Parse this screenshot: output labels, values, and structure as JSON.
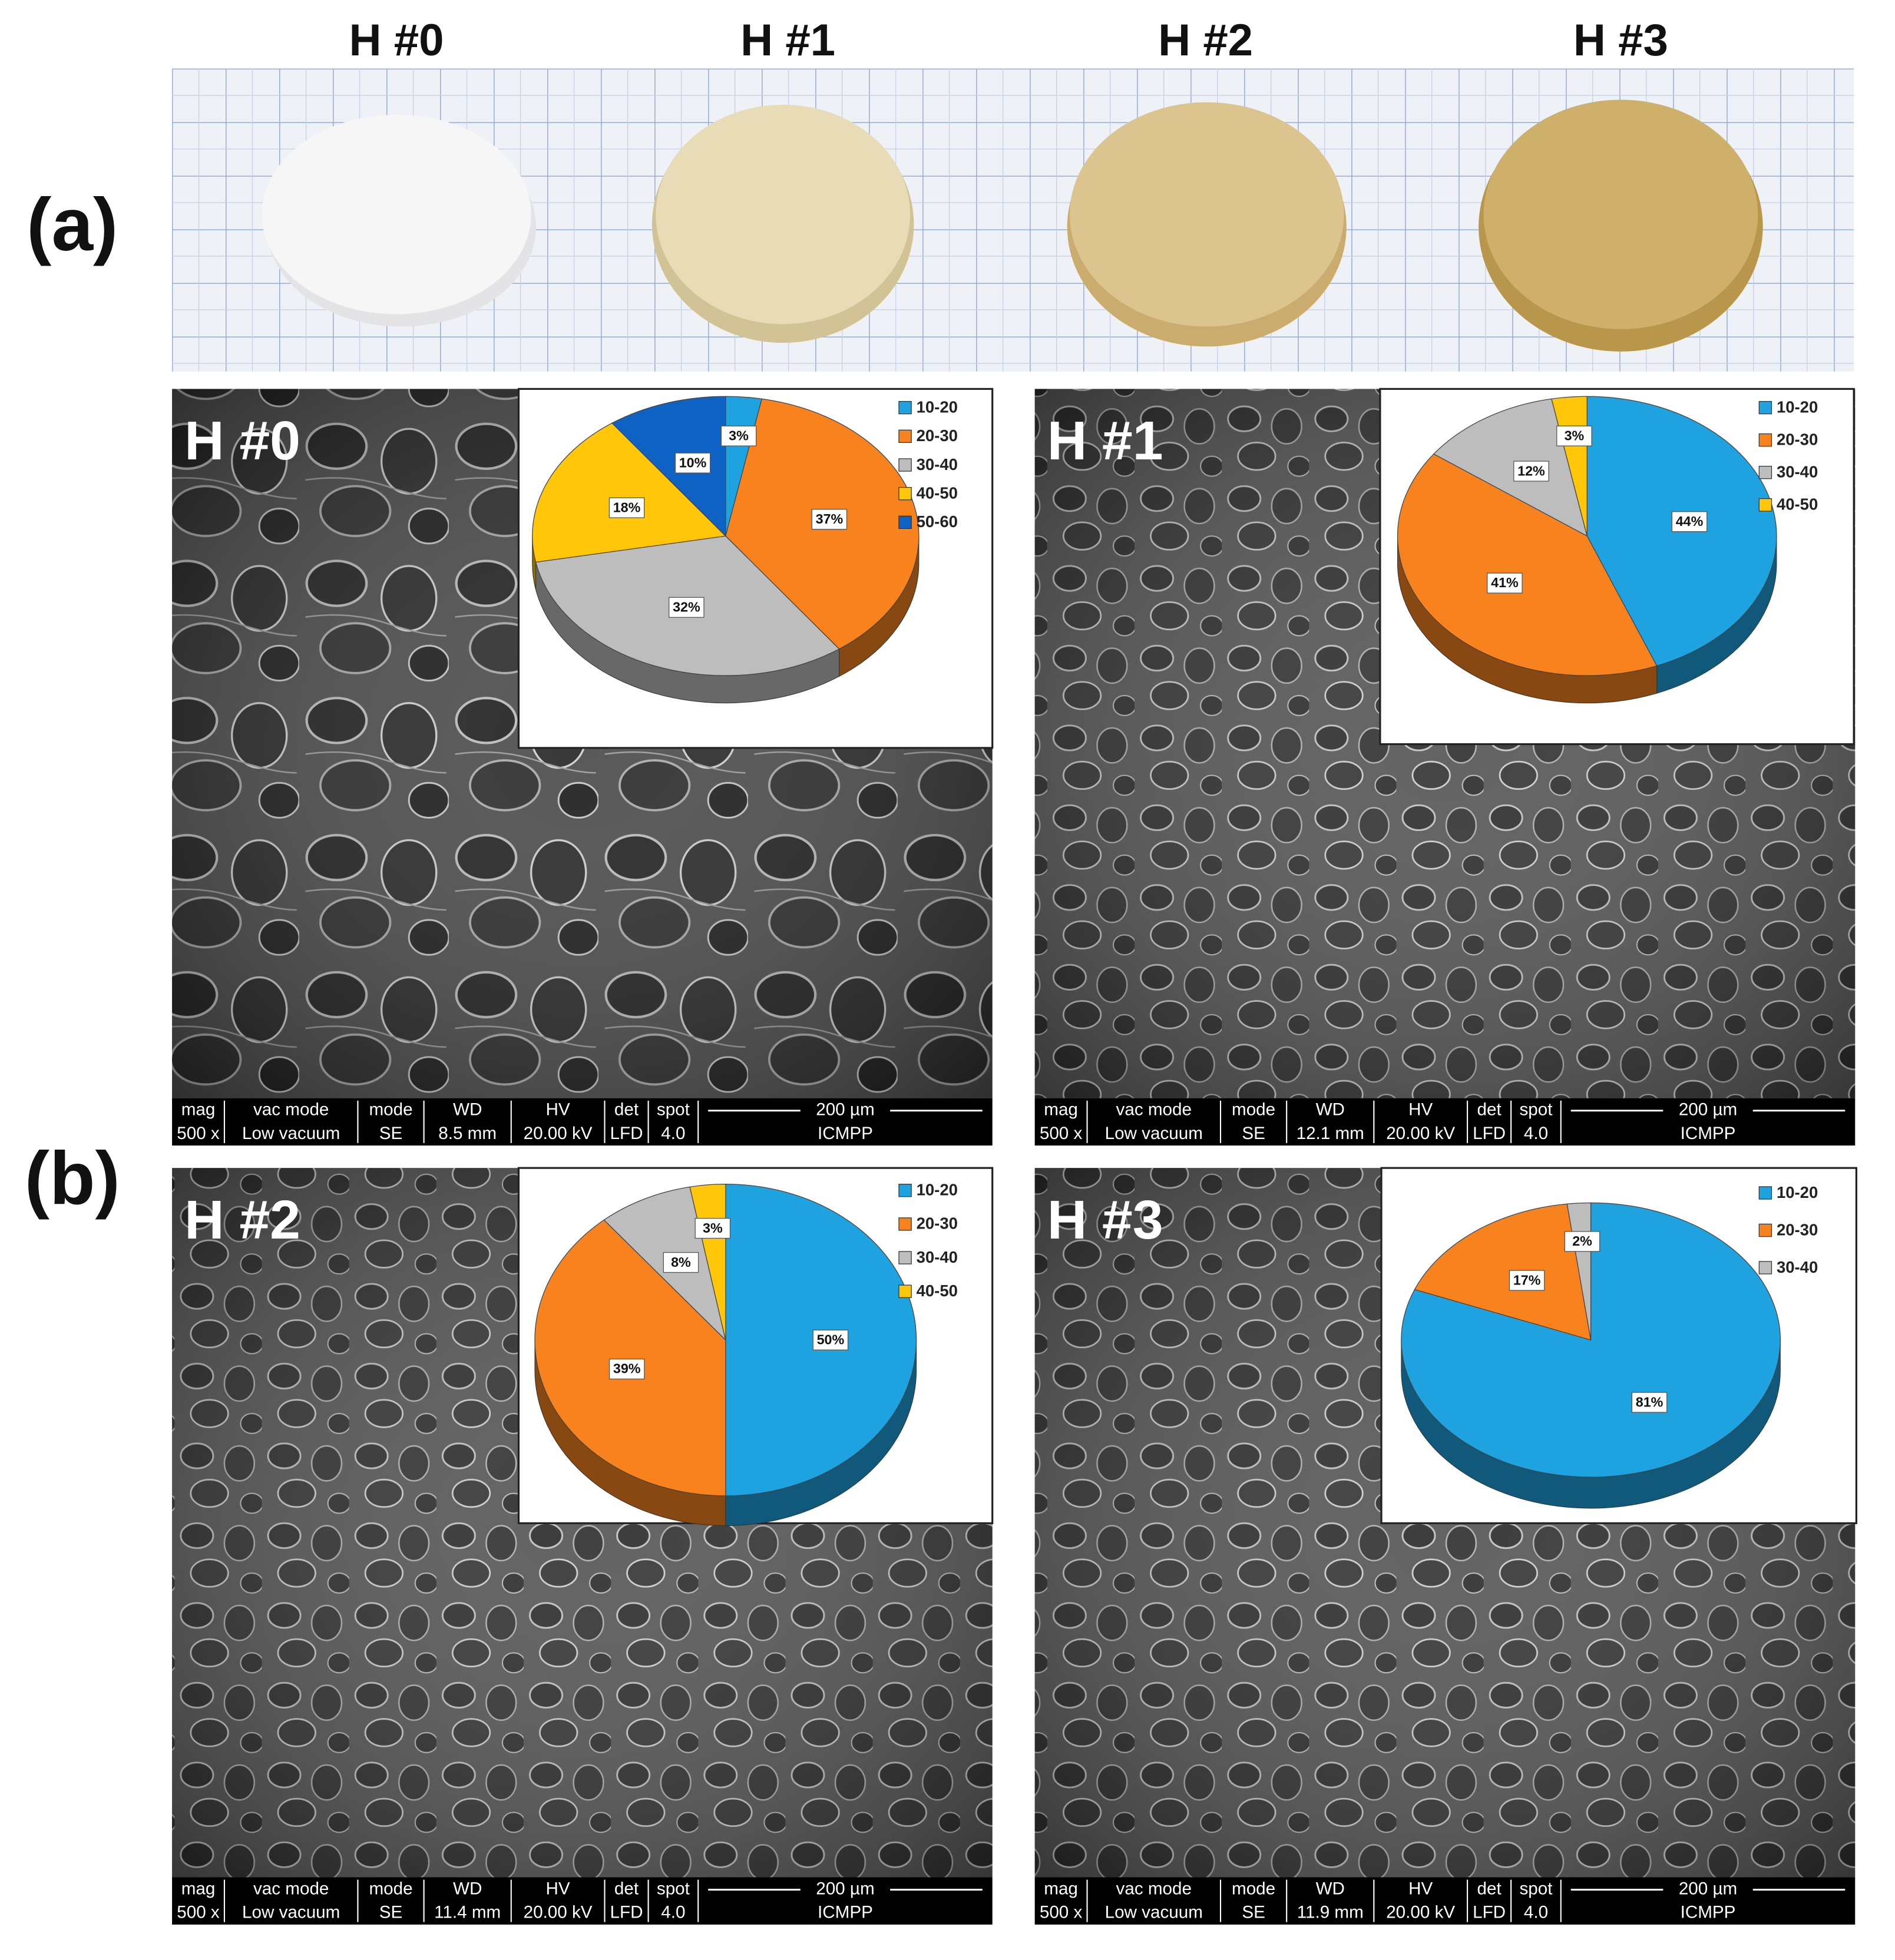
{
  "panel_labels": [
    "(a)",
    "(b)"
  ],
  "photo_labels": [
    "H #0",
    "H #1",
    "H #2",
    "H #3"
  ],
  "sem_bar_header": [
    "mag",
    "vac mode",
    "mode",
    "WD",
    "HV",
    "det",
    "spot",
    "200 µm"
  ],
  "sem": [
    {
      "label": "H #0",
      "values": [
        "500 x",
        "Low vacuum",
        "SE",
        "8.5 mm",
        "20.00 kV",
        "LFD",
        "4.0",
        "ICMPP"
      ]
    },
    {
      "label": "H #1",
      "values": [
        "500 x",
        "Low vacuum",
        "SE",
        "12.1 mm",
        "20.00 kV",
        "LFD",
        "4.0",
        "ICMPP"
      ]
    },
    {
      "label": "H #2",
      "values": [
        "500 x",
        "Low vacuum",
        "SE",
        "11.4 mm",
        "20.00 kV",
        "LFD",
        "4.0",
        "ICMPP"
      ]
    },
    {
      "label": "H #3",
      "values": [
        "500 x",
        "Low vacuum",
        "SE",
        "11.9 mm",
        "20.00 kV",
        "LFD",
        "4.0",
        "ICMPP"
      ]
    }
  ],
  "chart_data": [
    {
      "type": "pie",
      "categories": [
        "10-20",
        "20-30",
        "30-40",
        "40-50",
        "50-60"
      ],
      "values": [
        3,
        37,
        32,
        18,
        10
      ],
      "value_labels": [
        "3%",
        "37%",
        "32%",
        "18%",
        "10%"
      ],
      "colors": [
        "#1ea2e0",
        "#f7821e",
        "#bdbdbd",
        "#ffc60a",
        "#0e62c4"
      ],
      "legend": "top-right"
    },
    {
      "type": "pie",
      "categories": [
        "10-20",
        "20-30",
        "30-40",
        "40-50"
      ],
      "values": [
        44,
        41,
        12,
        3
      ],
      "value_labels": [
        "44%",
        "41%",
        "12%",
        "3%"
      ],
      "colors": [
        "#1ea2e0",
        "#f7821e",
        "#bdbdbd",
        "#ffc60a"
      ],
      "legend": "top-right"
    },
    {
      "type": "pie",
      "categories": [
        "10-20",
        "20-30",
        "30-40",
        "40-50"
      ],
      "values": [
        50,
        39,
        8,
        3
      ],
      "value_labels": [
        "50%",
        "39%",
        "8%",
        "3%"
      ],
      "colors": [
        "#1ea2e0",
        "#f7821e",
        "#bdbdbd",
        "#ffc60a"
      ],
      "legend": "top-right"
    },
    {
      "type": "pie",
      "categories": [
        "10-20",
        "20-30",
        "30-40"
      ],
      "values": [
        81,
        17,
        2
      ],
      "value_labels": [
        "81%",
        "17%",
        "2%"
      ],
      "colors": [
        "#1ea2e0",
        "#f7821e",
        "#bdbdbd"
      ],
      "legend": "top-right"
    }
  ]
}
